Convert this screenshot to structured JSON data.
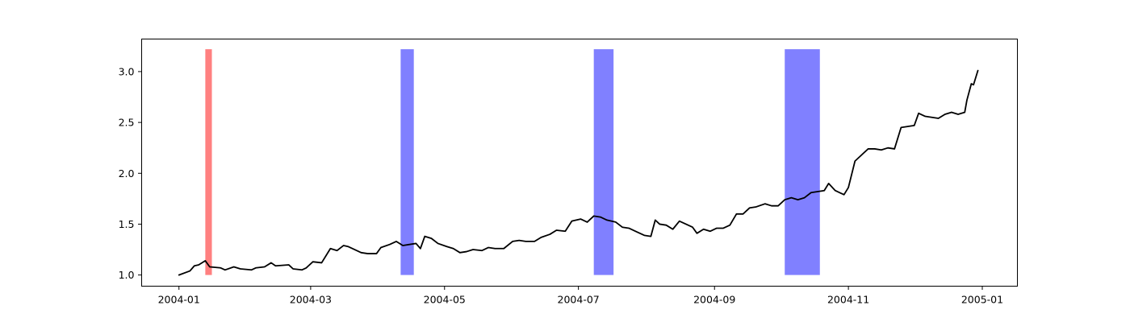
{
  "chart_data": {
    "type": "line",
    "title": "",
    "xlabel": "",
    "ylabel": "",
    "x_start": "2004-01-01",
    "x_end": "2004-12-31",
    "xlim": [
      "2003-12-15",
      "2005-01-17"
    ],
    "ylim": [
      0.89,
      3.32
    ],
    "x_ticks": [
      {
        "date": "2004-01-01",
        "label": "2004-01"
      },
      {
        "date": "2004-03-01",
        "label": "2004-03"
      },
      {
        "date": "2004-05-01",
        "label": "2004-05"
      },
      {
        "date": "2004-07-01",
        "label": "2004-07"
      },
      {
        "date": "2004-09-01",
        "label": "2004-09"
      },
      {
        "date": "2004-11-01",
        "label": "2004-11"
      },
      {
        "date": "2005-01-01",
        "label": "2005-01"
      }
    ],
    "y_ticks": [
      {
        "value": 1.0,
        "label": "1.0"
      },
      {
        "value": 1.5,
        "label": "1.5"
      },
      {
        "value": 2.0,
        "label": "2.0"
      },
      {
        "value": 2.5,
        "label": "2.5"
      },
      {
        "value": 3.0,
        "label": "3.0"
      }
    ],
    "grid": false,
    "line_color": "#000000",
    "series": [
      {
        "points": [
          [
            "2004-01-01",
            1.0
          ],
          [
            "2004-01-06",
            1.04
          ],
          [
            "2004-01-08",
            1.09
          ],
          [
            "2004-01-10",
            1.1
          ],
          [
            "2004-01-13",
            1.14
          ],
          [
            "2004-01-15",
            1.08
          ],
          [
            "2004-01-20",
            1.07
          ],
          [
            "2004-01-22",
            1.05
          ],
          [
            "2004-01-26",
            1.08
          ],
          [
            "2004-01-29",
            1.06
          ],
          [
            "2004-02-03",
            1.05
          ],
          [
            "2004-02-05",
            1.07
          ],
          [
            "2004-02-09",
            1.08
          ],
          [
            "2004-02-12",
            1.12
          ],
          [
            "2004-02-14",
            1.09
          ],
          [
            "2004-02-20",
            1.1
          ],
          [
            "2004-02-22",
            1.06
          ],
          [
            "2004-02-26",
            1.05
          ],
          [
            "2004-02-28",
            1.07
          ],
          [
            "2004-03-02",
            1.13
          ],
          [
            "2004-03-06",
            1.12
          ],
          [
            "2004-03-10",
            1.26
          ],
          [
            "2004-03-13",
            1.24
          ],
          [
            "2004-03-16",
            1.29
          ],
          [
            "2004-03-18",
            1.28
          ],
          [
            "2004-03-24",
            1.22
          ],
          [
            "2004-03-27",
            1.21
          ],
          [
            "2004-03-31",
            1.21
          ],
          [
            "2004-04-02",
            1.27
          ],
          [
            "2004-04-06",
            1.3
          ],
          [
            "2004-04-09",
            1.33
          ],
          [
            "2004-04-12",
            1.29
          ],
          [
            "2004-04-15",
            1.3
          ],
          [
            "2004-04-18",
            1.31
          ],
          [
            "2004-04-20",
            1.26
          ],
          [
            "2004-04-22",
            1.38
          ],
          [
            "2004-04-25",
            1.36
          ],
          [
            "2004-04-28",
            1.31
          ],
          [
            "2004-05-02",
            1.28
          ],
          [
            "2004-05-05",
            1.26
          ],
          [
            "2004-05-08",
            1.22
          ],
          [
            "2004-05-11",
            1.23
          ],
          [
            "2004-05-14",
            1.25
          ],
          [
            "2004-05-18",
            1.24
          ],
          [
            "2004-05-21",
            1.27
          ],
          [
            "2004-05-24",
            1.26
          ],
          [
            "2004-05-28",
            1.26
          ],
          [
            "2004-06-01",
            1.33
          ],
          [
            "2004-06-04",
            1.34
          ],
          [
            "2004-06-07",
            1.33
          ],
          [
            "2004-06-11",
            1.33
          ],
          [
            "2004-06-14",
            1.37
          ],
          [
            "2004-06-18",
            1.4
          ],
          [
            "2004-06-21",
            1.44
          ],
          [
            "2004-06-25",
            1.43
          ],
          [
            "2004-06-28",
            1.53
          ],
          [
            "2004-07-02",
            1.55
          ],
          [
            "2004-07-05",
            1.52
          ],
          [
            "2004-07-08",
            1.58
          ],
          [
            "2004-07-11",
            1.57
          ],
          [
            "2004-07-14",
            1.54
          ],
          [
            "2004-07-18",
            1.52
          ],
          [
            "2004-07-21",
            1.47
          ],
          [
            "2004-07-24",
            1.46
          ],
          [
            "2004-07-28",
            1.42
          ],
          [
            "2004-07-31",
            1.39
          ],
          [
            "2004-08-03",
            1.38
          ],
          [
            "2004-08-05",
            1.54
          ],
          [
            "2004-08-07",
            1.5
          ],
          [
            "2004-08-10",
            1.49
          ],
          [
            "2004-08-13",
            1.45
          ],
          [
            "2004-08-16",
            1.53
          ],
          [
            "2004-08-19",
            1.5
          ],
          [
            "2004-08-22",
            1.47
          ],
          [
            "2004-08-24",
            1.41
          ],
          [
            "2004-08-27",
            1.45
          ],
          [
            "2004-08-30",
            1.43
          ],
          [
            "2004-09-02",
            1.46
          ],
          [
            "2004-09-05",
            1.46
          ],
          [
            "2004-09-08",
            1.49
          ],
          [
            "2004-09-11",
            1.6
          ],
          [
            "2004-09-14",
            1.6
          ],
          [
            "2004-09-17",
            1.66
          ],
          [
            "2004-09-20",
            1.67
          ],
          [
            "2004-09-24",
            1.7
          ],
          [
            "2004-09-27",
            1.68
          ],
          [
            "2004-09-30",
            1.68
          ],
          [
            "2004-10-03",
            1.74
          ],
          [
            "2004-10-06",
            1.76
          ],
          [
            "2004-10-09",
            1.74
          ],
          [
            "2004-10-12",
            1.76
          ],
          [
            "2004-10-15",
            1.81
          ],
          [
            "2004-10-18",
            1.82
          ],
          [
            "2004-10-21",
            1.83
          ],
          [
            "2004-10-23",
            1.9
          ],
          [
            "2004-10-26",
            1.83
          ],
          [
            "2004-10-28",
            1.81
          ],
          [
            "2004-10-30",
            1.79
          ],
          [
            "2004-11-01",
            1.86
          ],
          [
            "2004-11-04",
            2.12
          ],
          [
            "2004-11-07",
            2.18
          ],
          [
            "2004-11-10",
            2.24
          ],
          [
            "2004-11-13",
            2.24
          ],
          [
            "2004-11-16",
            2.23
          ],
          [
            "2004-11-19",
            2.25
          ],
          [
            "2004-11-22",
            2.24
          ],
          [
            "2004-11-25",
            2.45
          ],
          [
            "2004-11-28",
            2.46
          ],
          [
            "2004-12-01",
            2.47
          ],
          [
            "2004-12-03",
            2.59
          ],
          [
            "2004-12-06",
            2.56
          ],
          [
            "2004-12-09",
            2.55
          ],
          [
            "2004-12-12",
            2.54
          ],
          [
            "2004-12-15",
            2.58
          ],
          [
            "2004-12-18",
            2.6
          ],
          [
            "2004-12-21",
            2.58
          ],
          [
            "2004-12-24",
            2.6
          ],
          [
            "2004-12-25",
            2.72
          ],
          [
            "2004-12-27",
            2.88
          ],
          [
            "2004-12-28",
            2.87
          ],
          [
            "2004-12-30",
            3.01
          ]
        ]
      }
    ],
    "bands": [
      {
        "start": "2004-01-13",
        "end": "2004-01-16",
        "ymin": 1.0,
        "ymax": 3.22,
        "color": "#ff8080"
      },
      {
        "start": "2004-04-11",
        "end": "2004-04-17",
        "ymin": 1.0,
        "ymax": 3.22,
        "color": "#8080ff"
      },
      {
        "start": "2004-07-08",
        "end": "2004-07-17",
        "ymin": 1.0,
        "ymax": 3.22,
        "color": "#8080ff"
      },
      {
        "start": "2004-10-03",
        "end": "2004-10-19",
        "ymin": 1.0,
        "ymax": 3.22,
        "color": "#8080ff"
      }
    ]
  }
}
